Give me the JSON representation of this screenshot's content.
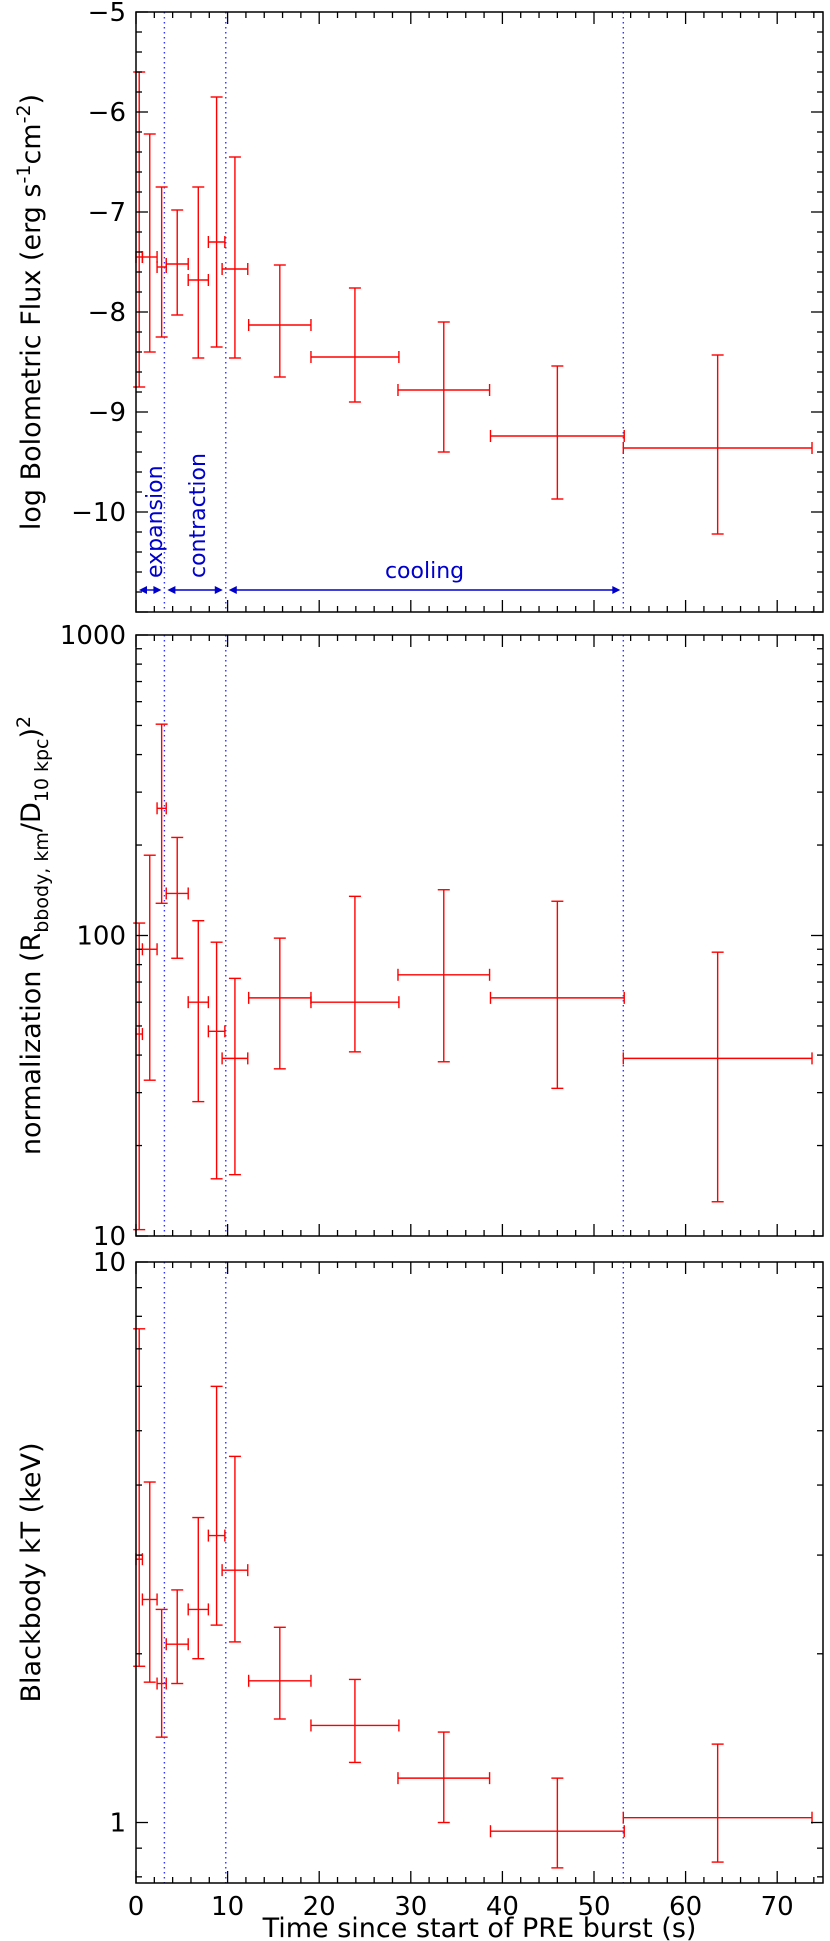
{
  "chart_data": [
    {
      "type": "scatter",
      "panel": "flux",
      "ylabel_parts": [
        "log Bolometric Flux (erg s",
        "-1",
        "cm",
        "-2",
        ")"
      ],
      "xlim": [
        0,
        75
      ],
      "ylim": [
        -11,
        -5
      ],
      "yscale": "linear",
      "yticks": [
        -5,
        -6,
        -7,
        -8,
        -9,
        -10
      ],
      "ytick_labels": [
        "−5",
        "−6",
        "−7",
        "−8",
        "−9",
        "−10"
      ],
      "series": [
        {
          "color": "#ff0000",
          "points": [
            {
              "x": 0.35,
              "xerr": 0.35,
              "y": -7.45,
              "ylo": -8.75,
              "yhi": -5.6
            },
            {
              "x": 1.5,
              "xerr": 0.8,
              "y": -7.45,
              "ylo": -8.4,
              "yhi": -6.22
            },
            {
              "x": 2.8,
              "xerr": 0.5,
              "y": -7.55,
              "ylo": -8.25,
              "yhi": -6.75
            },
            {
              "x": 4.5,
              "xerr": 1.2,
              "y": -7.52,
              "ylo": -8.03,
              "yhi": -6.98
            },
            {
              "x": 6.8,
              "xerr": 1.1,
              "y": -7.68,
              "ylo": -8.46,
              "yhi": -6.75
            },
            {
              "x": 8.8,
              "xerr": 0.9,
              "y": -7.3,
              "ylo": -8.35,
              "yhi": -5.85
            },
            {
              "x": 10.8,
              "xerr": 1.4,
              "y": -7.57,
              "ylo": -8.46,
              "yhi": -6.45
            },
            {
              "x": 15.7,
              "xerr": 3.4,
              "y": -8.13,
              "ylo": -8.65,
              "yhi": -7.53
            },
            {
              "x": 23.9,
              "xerr": 4.8,
              "y": -8.45,
              "ylo": -8.9,
              "yhi": -7.76
            },
            {
              "x": 33.6,
              "xerr": 5.0,
              "y": -8.78,
              "ylo": -9.4,
              "yhi": -8.1
            },
            {
              "x": 46.0,
              "xerr": 7.3,
              "y": -9.24,
              "ylo": -9.87,
              "yhi": -8.54
            },
            {
              "x": 63.5,
              "xerr": 10.3,
              "y": -9.36,
              "ylo": -10.22,
              "yhi": -8.43
            }
          ]
        }
      ],
      "vlines": [
        3.1,
        9.8,
        53.2
      ],
      "phases": [
        {
          "label": "expansion",
          "x0": 0,
          "x1": 3.1
        },
        {
          "label": "contraction",
          "x0": 3.1,
          "x1": 9.8
        },
        {
          "label": "cooling",
          "x0": 9.8,
          "x1": 53.2
        }
      ],
      "grid": false,
      "legend": "none"
    },
    {
      "type": "scatter",
      "panel": "normalization",
      "ylabel_parts": [
        "normalization (R",
        "bbody, km",
        "/D",
        "10 kpc",
        ")",
        "2"
      ],
      "xlim": [
        0,
        75
      ],
      "ylim": [
        10,
        1000
      ],
      "yscale": "log",
      "yticks": [
        10,
        100,
        1000
      ],
      "ytick_labels": [
        "10",
        "100",
        "1000"
      ],
      "series": [
        {
          "color": "#ff0000",
          "points": [
            {
              "x": 0.35,
              "xerr": 0.35,
              "y": 47,
              "ylo": 10.5,
              "yhi": 110
            },
            {
              "x": 1.5,
              "xerr": 0.8,
              "y": 90,
              "ylo": 33,
              "yhi": 185
            },
            {
              "x": 2.8,
              "xerr": 0.5,
              "y": 265,
              "ylo": 128,
              "yhi": 505
            },
            {
              "x": 4.5,
              "xerr": 1.2,
              "y": 138,
              "ylo": 84,
              "yhi": 212
            },
            {
              "x": 6.8,
              "xerr": 1.1,
              "y": 60,
              "ylo": 28,
              "yhi": 112
            },
            {
              "x": 8.8,
              "xerr": 0.9,
              "y": 48,
              "ylo": 15.5,
              "yhi": 95
            },
            {
              "x": 10.8,
              "xerr": 1.4,
              "y": 39,
              "ylo": 16,
              "yhi": 72
            },
            {
              "x": 15.7,
              "xerr": 3.4,
              "y": 62,
              "ylo": 36,
              "yhi": 98
            },
            {
              "x": 23.9,
              "xerr": 4.8,
              "y": 60,
              "ylo": 41,
              "yhi": 135
            },
            {
              "x": 33.6,
              "xerr": 5.0,
              "y": 74,
              "ylo": 38,
              "yhi": 142
            },
            {
              "x": 46.0,
              "xerr": 7.3,
              "y": 62,
              "ylo": 31,
              "yhi": 130
            },
            {
              "x": 63.5,
              "xerr": 10.3,
              "y": 39,
              "ylo": 13,
              "yhi": 88
            }
          ]
        }
      ],
      "vlines": [
        3.1,
        9.8,
        53.2
      ],
      "grid": false,
      "legend": "none"
    },
    {
      "type": "scatter",
      "panel": "temperature",
      "ylabel_parts": [
        "Blackbody kT (keV)"
      ],
      "xlabel": "Time since start of PRE burst (s)",
      "xlim": [
        0,
        75
      ],
      "xticks": [
        0,
        10,
        20,
        30,
        40,
        50,
        60,
        70
      ],
      "xtick_labels": [
        "0",
        "10",
        "20",
        "30",
        "40",
        "50",
        "60",
        "70"
      ],
      "ylim": [
        0.78,
        10
      ],
      "yscale": "log",
      "yticks": [
        1,
        10
      ],
      "ytick_labels": [
        "1",
        "10"
      ],
      "series": [
        {
          "color": "#ff0000",
          "points": [
            {
              "x": 0.35,
              "xerr": 0.35,
              "y": 2.95,
              "ylo": 1.9,
              "yhi": 7.6
            },
            {
              "x": 1.5,
              "xerr": 0.8,
              "y": 2.5,
              "ylo": 1.78,
              "yhi": 4.05
            },
            {
              "x": 2.8,
              "xerr": 0.5,
              "y": 1.77,
              "ylo": 1.42,
              "yhi": 2.4
            },
            {
              "x": 4.5,
              "xerr": 1.2,
              "y": 2.08,
              "ylo": 1.77,
              "yhi": 2.6
            },
            {
              "x": 6.8,
              "xerr": 1.1,
              "y": 2.4,
              "ylo": 1.96,
              "yhi": 3.5
            },
            {
              "x": 8.8,
              "xerr": 0.9,
              "y": 3.25,
              "ylo": 2.25,
              "yhi": 6.0
            },
            {
              "x": 10.8,
              "xerr": 1.4,
              "y": 2.82,
              "ylo": 2.1,
              "yhi": 4.5
            },
            {
              "x": 15.7,
              "xerr": 3.4,
              "y": 1.79,
              "ylo": 1.53,
              "yhi": 2.23
            },
            {
              "x": 23.9,
              "xerr": 4.8,
              "y": 1.49,
              "ylo": 1.28,
              "yhi": 1.8
            },
            {
              "x": 33.6,
              "xerr": 5.0,
              "y": 1.2,
              "ylo": 1.0,
              "yhi": 1.45
            },
            {
              "x": 46.0,
              "xerr": 7.3,
              "y": 0.965,
              "ylo": 0.83,
              "yhi": 1.2
            },
            {
              "x": 63.5,
              "xerr": 10.3,
              "y": 1.02,
              "ylo": 0.85,
              "yhi": 1.38
            }
          ]
        }
      ],
      "vlines": [
        3.1,
        9.8,
        53.2
      ],
      "grid": false,
      "legend": "none"
    }
  ]
}
